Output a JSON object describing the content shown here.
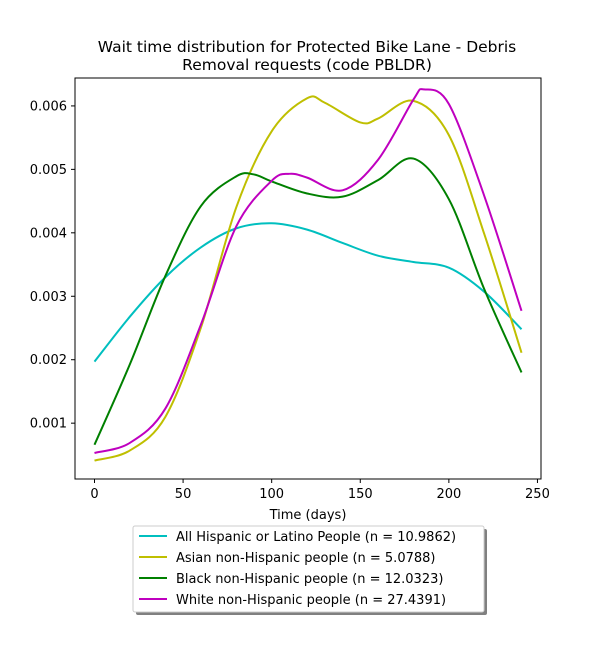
{
  "chart_data": {
    "type": "line",
    "title_lines": [
      "Wait time distribution  for Protected Bike Lane - Debris",
      "Removal  requests (code PBLDR)"
    ],
    "xlabel": "Time (days)",
    "ylabel": "",
    "xlim": [
      -11,
      252
    ],
    "ylim": [
      0.00012,
      0.00644
    ],
    "x_ticks": [
      0,
      50,
      100,
      150,
      200,
      250
    ],
    "y_ticks": [
      0.001,
      0.002,
      0.003,
      0.004,
      0.005,
      0.006
    ],
    "x_tick_labels": [
      "0",
      "50",
      "100",
      "150",
      "200",
      "250"
    ],
    "y_tick_labels": [
      "0.001",
      "0.002",
      "0.003",
      "0.004",
      "0.005",
      "0.006"
    ],
    "legend_position": "below",
    "grid": false,
    "series": [
      {
        "name": "All Hispanic or Latino People (n = 10.9862)",
        "color": "#00bfbf",
        "x": [
          0,
          20,
          40,
          60,
          80,
          100,
          120,
          140,
          160,
          180,
          200,
          220,
          241
        ],
        "y": [
          0.00197,
          0.00268,
          0.0033,
          0.00377,
          0.00407,
          0.00415,
          0.00405,
          0.00384,
          0.00364,
          0.00354,
          0.00345,
          0.00307,
          0.00248
        ]
      },
      {
        "name": "Asian non-Hispanic people (n = 5.0788)",
        "color": "#bfbf00",
        "x": [
          0,
          20,
          40,
          60,
          80,
          100,
          120,
          130,
          150,
          160,
          180,
          200,
          220,
          241
        ],
        "y": [
          0.00041,
          0.00057,
          0.0011,
          0.0025,
          0.0044,
          0.0056,
          0.00612,
          0.00605,
          0.00574,
          0.0058,
          0.00608,
          0.00554,
          0.00398,
          0.00211
        ]
      },
      {
        "name": "Black non-Hispanic people (n = 12.0323)",
        "color": "#008000",
        "x": [
          0,
          20,
          40,
          60,
          80,
          90,
          100,
          120,
          140,
          160,
          180,
          200,
          220,
          241
        ],
        "y": [
          0.00066,
          0.00193,
          0.00332,
          0.00442,
          0.00489,
          0.00492,
          0.00481,
          0.00462,
          0.00457,
          0.00483,
          0.00517,
          0.00453,
          0.00311,
          0.0018
        ]
      },
      {
        "name": "White non-Hispanic people (n = 27.4391)",
        "color": "#bf00bf",
        "x": [
          0,
          20,
          40,
          60,
          80,
          100,
          110,
          120,
          140,
          160,
          180,
          186,
          200,
          220,
          241
        ],
        "y": [
          0.00053,
          0.00069,
          0.00123,
          0.00255,
          0.0041,
          0.00482,
          0.00493,
          0.00487,
          0.00467,
          0.00515,
          0.0061,
          0.00626,
          0.00603,
          0.00458,
          0.00277
        ]
      }
    ]
  }
}
